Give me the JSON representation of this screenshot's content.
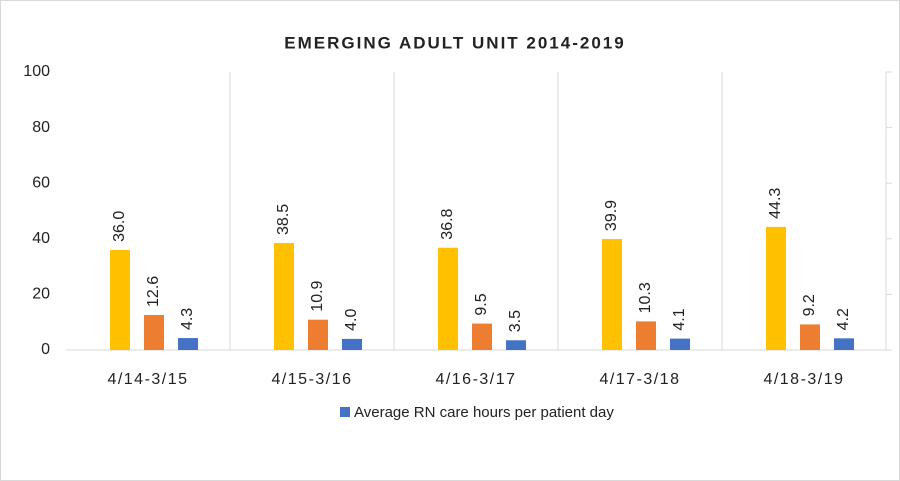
{
  "chart_data": {
    "type": "bar",
    "title": "EMERGING ADULT UNIT 2014-2019",
    "categories": [
      "4/14-3/15",
      "4/15-3/16",
      "4/16-3/17",
      "4/17-3/18",
      "4/18-3/19"
    ],
    "series": [
      {
        "color": "#FFC000",
        "values": [
          36.0,
          38.5,
          36.8,
          39.9,
          44.3
        ],
        "value_labels": [
          "36.0",
          "38.5",
          "36.8",
          "39.9",
          "44.3"
        ]
      },
      {
        "color": "#ED7D31",
        "values": [
          12.6,
          10.9,
          9.5,
          10.3,
          9.2
        ],
        "value_labels": [
          "12.6",
          "10.9",
          "9.5",
          "10.3",
          "9.2"
        ]
      },
      {
        "name": "Average RN care hours per patient day",
        "color": "#4472C4",
        "values": [
          4.3,
          4.0,
          3.5,
          4.1,
          4.2
        ],
        "value_labels": [
          "4.3",
          "4.0",
          "3.5",
          "4.1",
          "4.2"
        ]
      }
    ],
    "ylim": [
      0,
      100
    ],
    "yticks": [
      0,
      20,
      40,
      60,
      80,
      100
    ],
    "legend": "bottom"
  }
}
